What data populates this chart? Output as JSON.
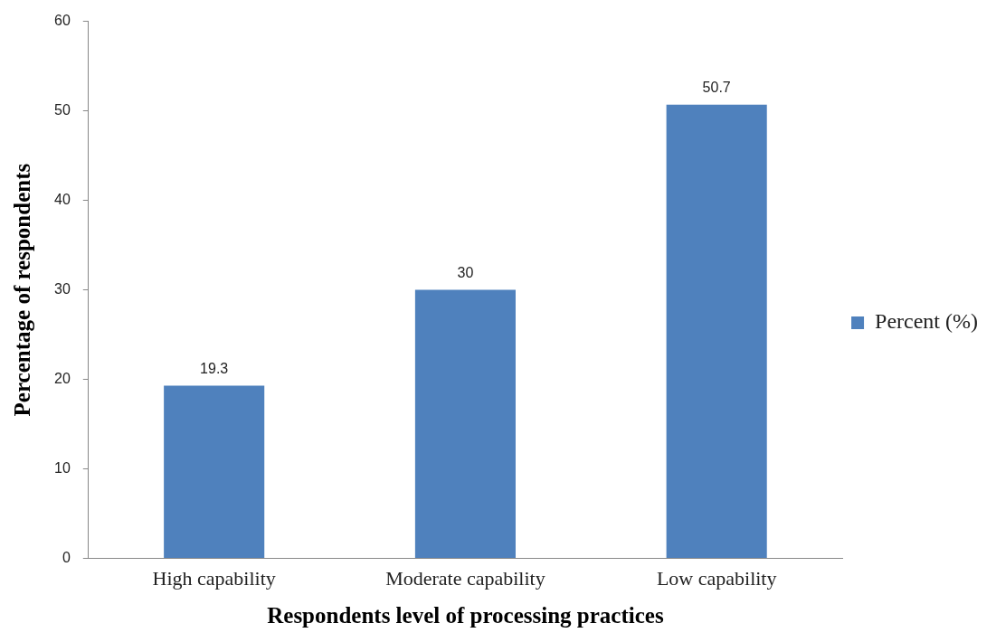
{
  "chart_data": {
    "type": "bar",
    "xlabel": "Respondents level of processing practices",
    "ylabel": "Percentage of respondents",
    "categories": [
      "High capability",
      "Moderate capability",
      "Low capability"
    ],
    "series": [
      {
        "name": "Percent (%)",
        "color": "#4f81bd",
        "values": [
          19.3,
          30,
          50.7
        ]
      }
    ],
    "ylim": [
      0,
      60
    ],
    "yticks": [
      0,
      10,
      20,
      30,
      40,
      50,
      60
    ],
    "grid": false,
    "legend": "right",
    "data_labels": true
  }
}
